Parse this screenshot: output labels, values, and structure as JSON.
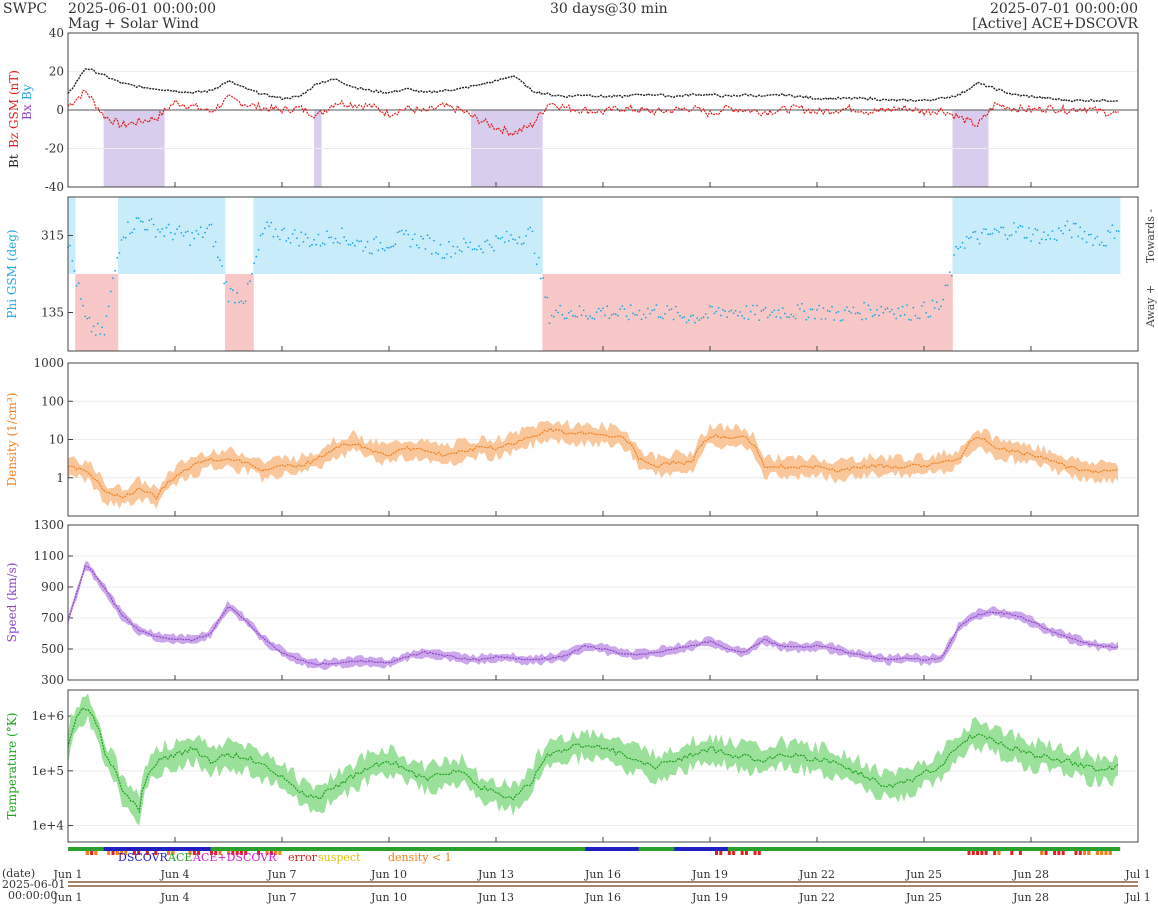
{
  "header": {
    "brand": "SWPC",
    "start": "2025-06-01 00:00:00",
    "subtitle": "Mag + Solar Wind",
    "span": "30 days@30 min",
    "end": "2025-07-01 00:00:00",
    "source": "[Active] ACE+DSCOVR"
  },
  "colors": {
    "bt": "#222222",
    "bz": "#e0201f",
    "bx": "#8e44c8",
    "by": "#1fa7e0",
    "phi": "#1fa7e0",
    "towards_fill": "#c9ecfb",
    "away_fill": "#f8c8c8",
    "south_fill": "#d9cdee",
    "density": "#f07f1e",
    "density_band": "#f9c79b",
    "speed": "#8e44c8",
    "speed_band": "#cba6ea",
    "temp": "#1fa31f",
    "temp_band": "#9be09b"
  },
  "chart_data": [
    {
      "type": "line",
      "panel": "mag",
      "ylabel_parts": [
        "Bt",
        "Bz GSM (nT)",
        "Bx",
        "By"
      ],
      "ylim": [
        -40,
        40
      ],
      "yticks": [
        40,
        20,
        0,
        -20,
        -40
      ],
      "grid": true,
      "series": [
        {
          "name": "Bt",
          "x": [
            0,
            0.5,
            1,
            1.5,
            2,
            2.5,
            3,
            3.5,
            4,
            4.5,
            5,
            5.5,
            6,
            6.5,
            7,
            7.5,
            8,
            8.5,
            9,
            9.5,
            10,
            10.5,
            11,
            11.5,
            12,
            12.5,
            13,
            13.5,
            14,
            14.5,
            15,
            15.5,
            16,
            16.5,
            17,
            17.5,
            18,
            18.5,
            19,
            19.5,
            20,
            20.5,
            21,
            21.5,
            22,
            22.5,
            23,
            23.5,
            24,
            24.5,
            25,
            25.5,
            26,
            26.5,
            27,
            27.5,
            28,
            28.5,
            29,
            29.5
          ],
          "values": [
            8,
            22,
            18,
            14,
            12,
            11,
            10,
            9,
            10,
            15,
            11,
            8,
            6,
            7,
            14,
            16,
            12,
            10,
            9,
            11,
            9,
            10,
            11,
            13,
            15,
            18,
            10,
            8,
            7,
            8,
            7,
            7,
            8,
            8,
            7,
            8,
            8,
            7,
            8,
            7,
            8,
            7,
            6,
            6,
            6,
            6,
            5,
            5,
            5,
            6,
            8,
            14,
            11,
            8,
            7,
            6,
            5,
            5,
            5,
            5
          ]
        },
        {
          "name": "Bz",
          "x": [
            0,
            0.5,
            1,
            1.5,
            2,
            2.5,
            3,
            3.5,
            4,
            4.5,
            5,
            5.5,
            6,
            6.5,
            7,
            7.5,
            8,
            8.5,
            9,
            9.5,
            10,
            10.5,
            11,
            11.5,
            12,
            12.5,
            13,
            13.5,
            14,
            14.5,
            15,
            15.5,
            16,
            16.5,
            17,
            17.5,
            18,
            18.5,
            19,
            19.5,
            20,
            20.5,
            21,
            21.5,
            22,
            22.5,
            23,
            23.5,
            24,
            24.5,
            25,
            25.5,
            26,
            26.5,
            27,
            27.5,
            28,
            28.5,
            29,
            29.5
          ],
          "values": [
            2,
            10,
            -3,
            -8,
            -6,
            -4,
            4,
            2,
            -1,
            6,
            3,
            1,
            0,
            1,
            -3,
            4,
            3,
            2,
            -2,
            1,
            -1,
            2,
            0,
            -5,
            -9,
            -12,
            -8,
            4,
            1,
            0,
            -1,
            1,
            0,
            -1,
            0,
            1,
            -2,
            1,
            0,
            -1,
            0,
            1,
            -1,
            0,
            1,
            -1,
            0,
            1,
            -1,
            0,
            -4,
            -8,
            3,
            1,
            0,
            1,
            0,
            1,
            -1,
            -2
          ]
        }
      ]
    },
    {
      "type": "scatter",
      "panel": "phi",
      "ylabel": "Phi GSM (deg)",
      "yticks": [
        315,
        135
      ],
      "right_labels": [
        "Towards -",
        "Away +"
      ],
      "ylim": [
        45,
        405
      ],
      "series": [
        {
          "name": "Phi",
          "x": [
            0,
            0.5,
            1,
            1.5,
            2,
            2.5,
            3,
            3.5,
            4,
            4.5,
            5,
            5.5,
            6,
            6.5,
            7,
            7.5,
            8,
            8.5,
            9,
            9.5,
            10,
            10.5,
            11,
            11.5,
            12,
            12.5,
            13,
            13.5,
            14,
            14.5,
            15,
            15.5,
            16,
            16.5,
            17,
            17.5,
            18,
            18.5,
            19,
            19.5,
            20,
            20.5,
            21,
            21.5,
            22,
            22.5,
            23,
            23.5,
            24,
            24.5,
            25,
            25.5,
            26,
            26.5,
            27,
            27.5,
            28,
            28.5,
            29,
            29.5
          ],
          "values": [
            300,
            110,
            80,
            320,
            350,
            330,
            320,
            310,
            330,
            180,
            170,
            330,
            320,
            310,
            300,
            320,
            300,
            290,
            300,
            310,
            300,
            280,
            290,
            290,
            300,
            310,
            320,
            130,
            140,
            130,
            140,
            130,
            135,
            140,
            130,
            125,
            130,
            140,
            135,
            130,
            140,
            135,
            140,
            130,
            135,
            140,
            145,
            135,
            140,
            150,
            300,
            310,
            320,
            330,
            320,
            310,
            330,
            320,
            300,
            340
          ]
        }
      ]
    },
    {
      "type": "line",
      "panel": "density",
      "scale": "log",
      "ylabel": "Density (1/cm³)",
      "ylim": [
        0.1,
        1000
      ],
      "yticks": [
        "1000",
        "100",
        "10",
        "1"
      ],
      "series": [
        {
          "name": "Density",
          "x": [
            0,
            0.5,
            1,
            1.5,
            2,
            2.5,
            3,
            3.5,
            4,
            4.5,
            5,
            5.5,
            6,
            6.5,
            7,
            7.5,
            8,
            8.5,
            9,
            9.5,
            10,
            10.5,
            11,
            11.5,
            12,
            12.5,
            13,
            13.5,
            14,
            14.5,
            15,
            15.5,
            16,
            16.5,
            17,
            17.5,
            18,
            18.5,
            19,
            19.5,
            20,
            20.5,
            21,
            21.5,
            22,
            22.5,
            23,
            23.5,
            24,
            24.5,
            25,
            25.5,
            26,
            26.5,
            27,
            27.5,
            28,
            28.5,
            29,
            29.5
          ],
          "values": [
            2,
            1.5,
            0.4,
            0.3,
            0.5,
            0.3,
            1,
            2,
            3,
            3,
            2.5,
            1.5,
            2,
            2,
            3,
            6,
            8,
            5,
            4,
            6,
            5,
            4,
            5,
            6,
            6,
            8,
            12,
            18,
            15,
            14,
            13,
            12,
            3,
            2,
            2.5,
            2.5,
            12,
            12,
            11,
            2,
            2,
            1.8,
            2,
            1.5,
            1.8,
            2,
            2,
            2,
            2,
            2.5,
            3,
            12,
            6,
            5,
            4,
            3,
            2,
            1.5,
            1.5,
            1.5
          ]
        }
      ]
    },
    {
      "type": "line",
      "panel": "speed",
      "ylabel": "Speed (km/s)",
      "ylim": [
        300,
        1300
      ],
      "yticks": [
        1300,
        1100,
        900,
        700,
        500,
        300
      ],
      "series": [
        {
          "name": "Speed",
          "x": [
            0,
            0.5,
            1,
            1.5,
            2,
            2.5,
            3,
            3.5,
            4,
            4.5,
            5,
            5.5,
            6,
            6.5,
            7,
            7.5,
            8,
            8.5,
            9,
            9.5,
            10,
            10.5,
            11,
            11.5,
            12,
            12.5,
            13,
            13.5,
            14,
            14.5,
            15,
            15.5,
            16,
            16.5,
            17,
            17.5,
            18,
            18.5,
            19,
            19.5,
            20,
            20.5,
            21,
            21.5,
            22,
            22.5,
            23,
            23.5,
            24,
            24.5,
            25,
            25.5,
            26,
            26.5,
            27,
            27.5,
            28,
            28.5,
            29,
            29.5
          ],
          "values": [
            680,
            1050,
            900,
            720,
            620,
            580,
            560,
            560,
            600,
            780,
            680,
            560,
            480,
            430,
            400,
            410,
            420,
            420,
            410,
            450,
            480,
            460,
            440,
            430,
            450,
            440,
            430,
            440,
            460,
            520,
            500,
            470,
            460,
            480,
            500,
            520,
            550,
            500,
            480,
            560,
            520,
            510,
            520,
            500,
            470,
            450,
            430,
            440,
            430,
            440,
            650,
            720,
            740,
            720,
            680,
            620,
            580,
            540,
            520,
            510
          ]
        }
      ]
    },
    {
      "type": "line",
      "panel": "temperature",
      "scale": "log",
      "ylabel": "Temperature (°K)",
      "ylim": [
        5000,
        3000000
      ],
      "yticks": [
        "1e+6",
        "1e+5",
        "1e+4"
      ],
      "series": [
        {
          "name": "Temperature",
          "x": [
            0,
            0.5,
            1,
            1.5,
            2,
            2.5,
            3,
            3.5,
            4,
            4.5,
            5,
            5.5,
            6,
            6.5,
            7,
            7.5,
            8,
            8.5,
            9,
            9.5,
            10,
            10.5,
            11,
            11.5,
            12,
            12.5,
            13,
            13.5,
            14,
            14.5,
            15,
            15.5,
            16,
            16.5,
            17,
            17.5,
            18,
            18.5,
            19,
            19.5,
            20,
            20.5,
            21,
            21.5,
            22,
            22.5,
            23,
            23.5,
            24,
            24.5,
            25,
            25.5,
            26,
            26.5,
            27,
            27.5,
            28,
            28.5,
            29,
            29.5
          ],
          "values": [
            300000,
            1500000,
            200000,
            40000,
            20000,
            150000,
            200000,
            250000,
            150000,
            200000,
            180000,
            120000,
            80000,
            40000,
            30000,
            50000,
            80000,
            120000,
            150000,
            100000,
            70000,
            90000,
            100000,
            50000,
            40000,
            30000,
            60000,
            200000,
            250000,
            300000,
            280000,
            200000,
            150000,
            120000,
            150000,
            200000,
            250000,
            200000,
            180000,
            150000,
            200000,
            180000,
            160000,
            140000,
            100000,
            70000,
            50000,
            60000,
            90000,
            120000,
            300000,
            500000,
            350000,
            250000,
            200000,
            180000,
            150000,
            120000,
            100000,
            120000
          ]
        }
      ]
    }
  ],
  "legend": {
    "dscovr": "DSCOVR",
    "ace": "ACE",
    "ace_dscovr": "ACE+DSCOVR",
    "error": "error",
    "suspect": "suspect",
    "density_lt_1": "density < 1"
  },
  "xaxis": {
    "ticks": [
      "Jun 1",
      "Jun 4",
      "Jun 7",
      "Jun 10",
      "Jun 13",
      "Jun 16",
      "Jun 19",
      "Jun 22",
      "Jun 25",
      "Jun 28",
      "Jul 1"
    ],
    "tick_days": [
      0,
      3,
      6,
      9,
      12,
      15,
      18,
      21,
      24,
      27,
      30
    ],
    "xlim": [
      0,
      30
    ]
  },
  "date_axis": {
    "label": "(date)",
    "start_date": "2025-06-01",
    "start_time": "00:00:00"
  }
}
